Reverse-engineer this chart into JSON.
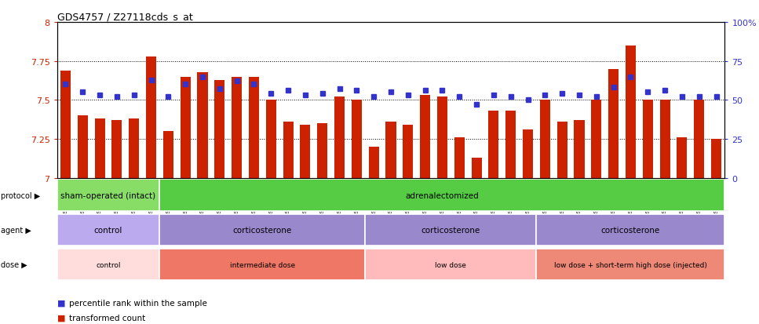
{
  "title": "GDS4757 / Z27118cds_s_at",
  "samples": [
    "GSM923289",
    "GSM923290",
    "GSM923291",
    "GSM923292",
    "GSM923293",
    "GSM923294",
    "GSM923295",
    "GSM923296",
    "GSM923297",
    "GSM923298",
    "GSM923299",
    "GSM923300",
    "GSM923301",
    "GSM923302",
    "GSM923303",
    "GSM923304",
    "GSM923305",
    "GSM923306",
    "GSM923307",
    "GSM923308",
    "GSM923309",
    "GSM923310",
    "GSM923311",
    "GSM923312",
    "GSM923313",
    "GSM923314",
    "GSM923315",
    "GSM923316",
    "GSM923317",
    "GSM923318",
    "GSM923319",
    "GSM923320",
    "GSM923321",
    "GSM923322",
    "GSM923323",
    "GSM923324",
    "GSM923325",
    "GSM923326",
    "GSM923327"
  ],
  "bar_values": [
    7.69,
    7.4,
    7.38,
    7.37,
    7.38,
    7.78,
    7.3,
    7.65,
    7.68,
    7.63,
    7.65,
    7.65,
    7.5,
    7.36,
    7.34,
    7.35,
    7.52,
    7.5,
    7.2,
    7.36,
    7.34,
    7.53,
    7.52,
    7.26,
    7.13,
    7.43,
    7.43,
    7.31,
    7.5,
    7.36,
    7.37,
    7.5,
    7.7,
    7.85,
    7.5,
    7.5,
    7.26,
    7.5,
    7.25
  ],
  "percentile_values": [
    60,
    55,
    53,
    52,
    53,
    63,
    52,
    60,
    65,
    57,
    62,
    60,
    54,
    56,
    53,
    54,
    57,
    56,
    52,
    55,
    53,
    56,
    56,
    52,
    47,
    53,
    52,
    50,
    53,
    54,
    53,
    52,
    58,
    65,
    55,
    56,
    52,
    52,
    52
  ],
  "ylim": [
    7.0,
    8.0
  ],
  "yticks": [
    7.0,
    7.25,
    7.5,
    7.75,
    8.0
  ],
  "ytick_labels": [
    "7",
    "7.25",
    "7.5",
    "7.75",
    "8"
  ],
  "right_yticks": [
    0,
    25,
    50,
    75,
    100
  ],
  "right_ytick_labels": [
    "0",
    "25",
    "50",
    "75",
    "100%"
  ],
  "hlines": [
    7.25,
    7.5,
    7.75
  ],
  "bar_color": "#CC2200",
  "dot_color": "#3333CC",
  "bar_width": 0.6,
  "protocol_groups": [
    {
      "label": "sham-operated (intact)",
      "start": 0,
      "end": 5,
      "color": "#88DD66"
    },
    {
      "label": "adrenalectomized",
      "start": 6,
      "end": 38,
      "color": "#55CC44"
    }
  ],
  "agent_groups": [
    {
      "label": "control",
      "start": 0,
      "end": 5,
      "color": "#BBAAEE"
    },
    {
      "label": "corticosterone",
      "start": 6,
      "end": 17,
      "color": "#9988CC"
    },
    {
      "label": "corticosterone",
      "start": 18,
      "end": 27,
      "color": "#9988CC"
    },
    {
      "label": "corticosterone",
      "start": 28,
      "end": 38,
      "color": "#9988CC"
    }
  ],
  "dose_groups": [
    {
      "label": "control",
      "start": 0,
      "end": 5,
      "color": "#FFDDDD"
    },
    {
      "label": "intermediate dose",
      "start": 6,
      "end": 17,
      "color": "#EE7766"
    },
    {
      "label": "low dose",
      "start": 18,
      "end": 27,
      "color": "#FFBBBB"
    },
    {
      "label": "low dose + short-term high dose (injected)",
      "start": 28,
      "end": 38,
      "color": "#EE8877"
    }
  ],
  "row_labels": [
    "protocol",
    "agent",
    "dose"
  ],
  "legend_items": [
    {
      "label": "transformed count",
      "color": "#CC2200"
    },
    {
      "label": "percentile rank within the sample",
      "color": "#3333CC"
    }
  ],
  "bg_color": "#ffffff"
}
